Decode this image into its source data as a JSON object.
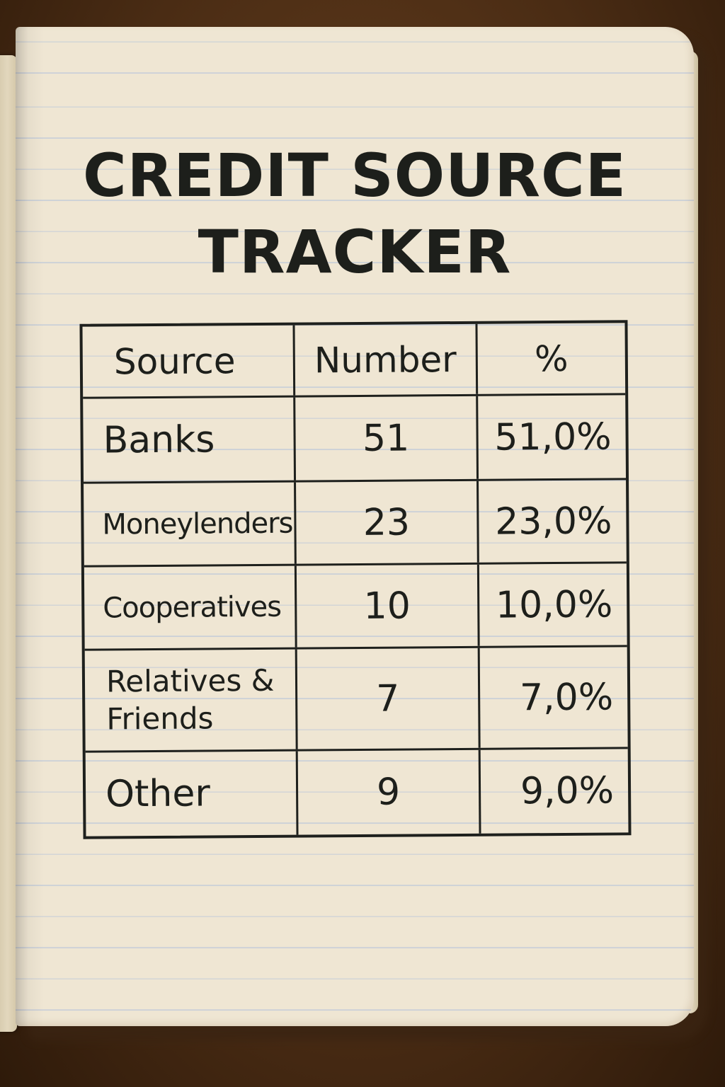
{
  "notebook": {
    "title_line1": "CREDIT SOURCE",
    "title_line2": "TRACKER"
  },
  "table": {
    "headers": {
      "source": "Source",
      "number": "Number",
      "percent": "%"
    },
    "rows": [
      {
        "source": "Banks",
        "number": "51",
        "percent": "51,0%"
      },
      {
        "source": "Moneylenders",
        "number": "23",
        "percent": "23,0%"
      },
      {
        "source": "Cooperatives",
        "number": "10",
        "percent": "10,0%"
      },
      {
        "source": "Relatives & Friends",
        "number": "7",
        "percent": "7,0%"
      },
      {
        "source": "Other",
        "number": "9",
        "percent": "9,0%"
      }
    ]
  },
  "colors": {
    "ink": "#1d1f1b",
    "paper": "#efe6d3",
    "rule_lines": "#c9cfd8",
    "wood": "#4a2c14"
  }
}
